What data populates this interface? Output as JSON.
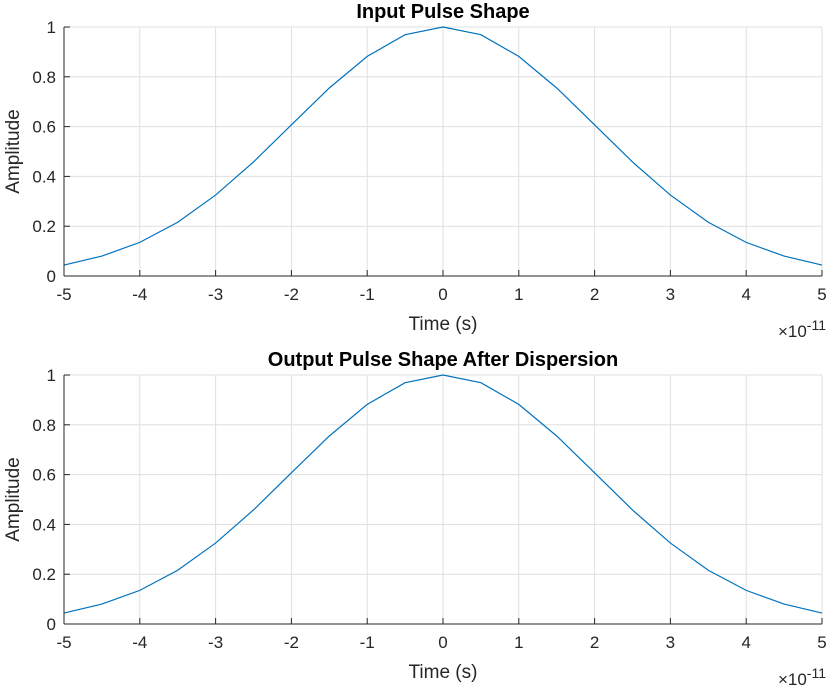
{
  "chart_data": [
    {
      "type": "line",
      "title": "Input Pulse Shape",
      "xlabel": "Time (s)",
      "ylabel": "Amplitude",
      "x_exponent_base": "×10",
      "x_exponent_power": "-11",
      "xlim": [
        -5e-11,
        5e-11
      ],
      "ylim": [
        0,
        1
      ],
      "x_ticks": [
        -5,
        -4,
        -3,
        -2,
        -1,
        0,
        1,
        2,
        3,
        4,
        5
      ],
      "y_ticks": [
        0,
        0.2,
        0.4,
        0.6,
        0.8,
        1
      ],
      "grid": true,
      "series": [
        {
          "color": "#0072bd",
          "x": [
            -5e-11,
            -4.5e-11,
            -4e-11,
            -3.5e-11,
            -3e-11,
            -2.5e-11,
            -2e-11,
            -1.5e-11,
            -1e-11,
            -5e-12,
            0,
            5e-12,
            1e-11,
            1.5e-11,
            2e-11,
            2.5e-11,
            3e-11,
            3.5e-11,
            4e-11,
            4.5e-11,
            5e-11
          ],
          "y": [
            0.044,
            0.08,
            0.135,
            0.216,
            0.325,
            0.458,
            0.607,
            0.755,
            0.882,
            0.969,
            1.0,
            0.969,
            0.882,
            0.755,
            0.607,
            0.458,
            0.325,
            0.216,
            0.135,
            0.08,
            0.044
          ]
        }
      ]
    },
    {
      "type": "line",
      "title": "Output Pulse Shape After Dispersion",
      "xlabel": "Time (s)",
      "ylabel": "Amplitude",
      "x_exponent_base": "×10",
      "x_exponent_power": "-11",
      "xlim": [
        -5e-11,
        5e-11
      ],
      "ylim": [
        0,
        1
      ],
      "x_ticks": [
        -5,
        -4,
        -3,
        -2,
        -1,
        0,
        1,
        2,
        3,
        4,
        5
      ],
      "y_ticks": [
        0,
        0.2,
        0.4,
        0.6,
        0.8,
        1
      ],
      "grid": true,
      "series": [
        {
          "color": "#0072bd",
          "x": [
            -5e-11,
            -4.5e-11,
            -4e-11,
            -3.5e-11,
            -3e-11,
            -2.5e-11,
            -2e-11,
            -1.5e-11,
            -1e-11,
            -5e-12,
            0,
            5e-12,
            1e-11,
            1.5e-11,
            2e-11,
            2.5e-11,
            3e-11,
            3.5e-11,
            4e-11,
            4.5e-11,
            5e-11
          ],
          "y": [
            0.044,
            0.08,
            0.135,
            0.216,
            0.325,
            0.458,
            0.607,
            0.755,
            0.882,
            0.969,
            1.0,
            0.969,
            0.882,
            0.755,
            0.607,
            0.458,
            0.325,
            0.216,
            0.135,
            0.08,
            0.044
          ]
        }
      ]
    }
  ]
}
